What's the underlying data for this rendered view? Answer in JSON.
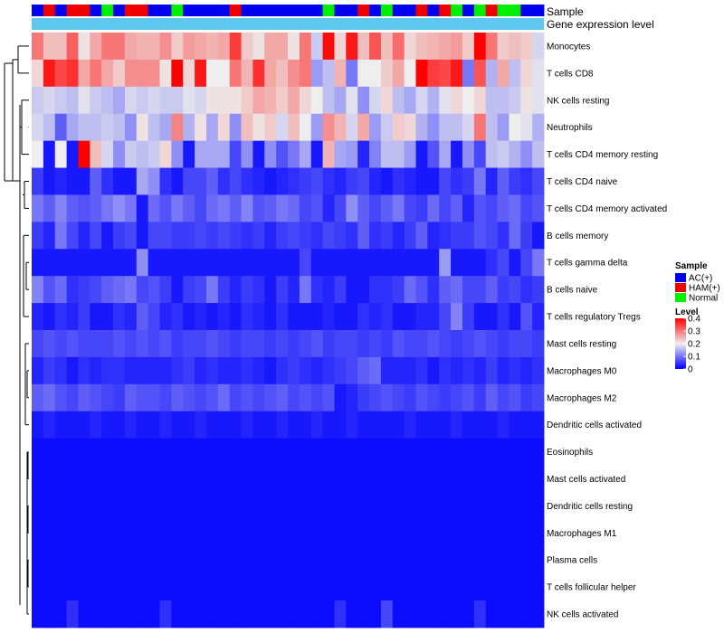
{
  "chart_data": {
    "type": "heatmap",
    "annotation_labels": {
      "sample": "Sample",
      "expression": "Gene expression level"
    },
    "sample_groups": [
      "AC",
      "HAM",
      "AC",
      "HAM",
      "HAM",
      "AC",
      "Normal",
      "AC",
      "HAM",
      "HAM",
      "AC",
      "AC",
      "Normal",
      "AC",
      "AC",
      "AC",
      "AC",
      "HAM",
      "AC",
      "AC",
      "AC",
      "AC",
      "AC",
      "AC",
      "AC",
      "Normal",
      "AC",
      "AC",
      "HAM",
      "AC",
      "Normal",
      "AC",
      "AC",
      "HAM",
      "AC",
      "HAM",
      "Normal",
      "AC",
      "Normal",
      "HAM",
      "Normal",
      "Normal",
      "AC",
      "AC"
    ],
    "rows": [
      "Monocytes",
      "T cells CD8",
      "NK cells resting",
      "Neutrophils",
      "T cells CD4 memory resting",
      "T cells CD4 naive",
      "T cells CD4 memory activated",
      "B cells memory",
      "T cells gamma delta",
      "B cells naive",
      "T cells regulatory  Tregs",
      "Mast cells resting",
      "Macrophages M0",
      "Macrophages M2",
      "Dendritic cells activated",
      "Eosinophils",
      "Mast cells activated",
      "Dendritic cells resting",
      "Macrophages M1",
      "Plasma cells",
      "T cells follicular helper",
      "NK cells activated"
    ],
    "values": [
      [
        0.3,
        0.24,
        0.24,
        0.32,
        0.21,
        0.26,
        0.3,
        0.3,
        0.26,
        0.25,
        0.25,
        0.28,
        0.23,
        0.27,
        0.26,
        0.25,
        0.26,
        0.35,
        0.23,
        0.21,
        0.26,
        0.26,
        0.21,
        0.3,
        0.17,
        0.39,
        0.22,
        0.38,
        0.24,
        0.33,
        0.24,
        0.31,
        0.22,
        0.24,
        0.25,
        0.26,
        0.27,
        0.23,
        0.4,
        0.3,
        0.23,
        0.24,
        0.23,
        0.18
      ],
      [
        0.22,
        0.38,
        0.34,
        0.36,
        0.26,
        0.3,
        0.26,
        0.23,
        0.28,
        0.28,
        0.28,
        0.21,
        0.4,
        0.22,
        0.38,
        0.2,
        0.2,
        0.3,
        0.25,
        0.36,
        0.26,
        0.24,
        0.28,
        0.3,
        0.13,
        0.16,
        0.25,
        0.1,
        0.2,
        0.2,
        0.23,
        0.26,
        0.2,
        0.4,
        0.35,
        0.34,
        0.38,
        0.1,
        0.33,
        0.15,
        0.26,
        0.16,
        0.22,
        0.19
      ],
      [
        0.17,
        0.18,
        0.17,
        0.16,
        0.19,
        0.17,
        0.16,
        0.14,
        0.18,
        0.17,
        0.18,
        0.17,
        0.17,
        0.19,
        0.18,
        0.21,
        0.21,
        0.21,
        0.23,
        0.26,
        0.25,
        0.23,
        0.26,
        0.22,
        0.2,
        0.16,
        0.14,
        0.19,
        0.12,
        0.18,
        0.22,
        0.16,
        0.14,
        0.18,
        0.15,
        0.19,
        0.22,
        0.2,
        0.22,
        0.16,
        0.16,
        0.17,
        0.21,
        0.19
      ],
      [
        0.18,
        0.16,
        0.08,
        0.14,
        0.16,
        0.16,
        0.17,
        0.16,
        0.12,
        0.21,
        0.16,
        0.14,
        0.29,
        0.15,
        0.21,
        0.14,
        0.22,
        0.12,
        0.24,
        0.21,
        0.23,
        0.18,
        0.24,
        0.2,
        0.13,
        0.28,
        0.25,
        0.18,
        0.26,
        0.13,
        0.17,
        0.23,
        0.22,
        0.15,
        0.12,
        0.16,
        0.16,
        0.18,
        0.3,
        0.16,
        0.13,
        0.2,
        0.19,
        0.15
      ],
      [
        0.2,
        0.02,
        0.2,
        0.02,
        0.4,
        0.24,
        0.18,
        0.12,
        0.17,
        0.16,
        0.17,
        0.22,
        0.12,
        0.02,
        0.14,
        0.14,
        0.14,
        0.06,
        0.12,
        0.02,
        0.12,
        0.07,
        0.1,
        0.14,
        0.02,
        0.25,
        0.14,
        0.13,
        0.03,
        0.11,
        0.16,
        0.16,
        0.13,
        0.02,
        0.07,
        0.14,
        0.02,
        0.12,
        0.06,
        0.16,
        0.17,
        0.15,
        0.12,
        0.16
      ],
      [
        0.05,
        0.02,
        0.03,
        0.02,
        0.02,
        0.08,
        0.04,
        0.02,
        0.02,
        0.14,
        0.12,
        0.04,
        0.02,
        0.06,
        0.06,
        0.08,
        0.04,
        0.06,
        0.04,
        0.03,
        0.02,
        0.03,
        0.04,
        0.05,
        0.06,
        0.04,
        0.03,
        0.05,
        0.06,
        0.03,
        0.02,
        0.04,
        0.03,
        0.02,
        0.02,
        0.06,
        0.04,
        0.05,
        0.1,
        0.03,
        0.08,
        0.05,
        0.04,
        0.06
      ],
      [
        0.1,
        0.08,
        0.11,
        0.08,
        0.07,
        0.08,
        0.1,
        0.12,
        0.1,
        0.02,
        0.09,
        0.07,
        0.1,
        0.08,
        0.06,
        0.09,
        0.1,
        0.08,
        0.11,
        0.07,
        0.08,
        0.1,
        0.09,
        0.06,
        0.07,
        0.03,
        0.06,
        0.12,
        0.08,
        0.06,
        0.08,
        0.1,
        0.06,
        0.05,
        0.09,
        0.06,
        0.08,
        0.03,
        0.07,
        0.06,
        0.08,
        0.09,
        0.06,
        0.07
      ],
      [
        0.05,
        0.03,
        0.1,
        0.06,
        0.03,
        0.06,
        0.02,
        0.05,
        0.06,
        0.02,
        0.06,
        0.06,
        0.05,
        0.05,
        0.06,
        0.05,
        0.06,
        0.05,
        0.04,
        0.05,
        0.03,
        0.05,
        0.06,
        0.05,
        0.04,
        0.06,
        0.05,
        0.04,
        0.08,
        0.04,
        0.05,
        0.03,
        0.05,
        0.08,
        0.03,
        0.04,
        0.05,
        0.05,
        0.07,
        0.06,
        0.04,
        0.09,
        0.05,
        0.02
      ],
      [
        0.02,
        0.02,
        0.02,
        0.02,
        0.02,
        0.02,
        0.02,
        0.02,
        0.02,
        0.12,
        0.02,
        0.02,
        0.02,
        0.02,
        0.02,
        0.02,
        0.02,
        0.02,
        0.02,
        0.02,
        0.02,
        0.02,
        0.02,
        0.06,
        0.02,
        0.02,
        0.02,
        0.02,
        0.02,
        0.02,
        0.02,
        0.02,
        0.02,
        0.02,
        0.02,
        0.13,
        0.02,
        0.02,
        0.02,
        0.04,
        0.06,
        0.02,
        0.06,
        0.1
      ],
      [
        0.11,
        0.07,
        0.09,
        0.04,
        0.05,
        0.06,
        0.08,
        0.09,
        0.1,
        0.06,
        0.07,
        0.05,
        0.02,
        0.05,
        0.06,
        0.1,
        0.05,
        0.03,
        0.05,
        0.04,
        0.02,
        0.05,
        0.03,
        0.1,
        0.04,
        0.03,
        0.05,
        0.02,
        0.02,
        0.04,
        0.04,
        0.05,
        0.09,
        0.07,
        0.04,
        0.08,
        0.09,
        0.06,
        0.06,
        0.08,
        0.05,
        0.06,
        0.04,
        0.05
      ],
      [
        0.03,
        0.02,
        0.04,
        0.03,
        0.05,
        0.02,
        0.02,
        0.04,
        0.03,
        0.08,
        0.06,
        0.03,
        0.04,
        0.02,
        0.03,
        0.02,
        0.03,
        0.02,
        0.04,
        0.03,
        0.02,
        0.04,
        0.02,
        0.02,
        0.02,
        0.03,
        0.02,
        0.02,
        0.04,
        0.03,
        0.04,
        0.02,
        0.02,
        0.03,
        0.03,
        0.06,
        0.11,
        0.05,
        0.02,
        0.02,
        0.04,
        0.02,
        0.07,
        0.03
      ],
      [
        0.06,
        0.07,
        0.06,
        0.07,
        0.06,
        0.06,
        0.06,
        0.07,
        0.06,
        0.07,
        0.06,
        0.07,
        0.05,
        0.06,
        0.06,
        0.07,
        0.06,
        0.05,
        0.06,
        0.06,
        0.05,
        0.06,
        0.05,
        0.06,
        0.07,
        0.05,
        0.06,
        0.06,
        0.05,
        0.06,
        0.05,
        0.07,
        0.06,
        0.06,
        0.07,
        0.06,
        0.05,
        0.06,
        0.07,
        0.06,
        0.05,
        0.06,
        0.06,
        0.05
      ],
      [
        0.03,
        0.05,
        0.04,
        0.02,
        0.04,
        0.03,
        0.04,
        0.04,
        0.03,
        0.03,
        0.03,
        0.03,
        0.04,
        0.05,
        0.03,
        0.04,
        0.03,
        0.03,
        0.04,
        0.03,
        0.02,
        0.04,
        0.05,
        0.04,
        0.03,
        0.04,
        0.05,
        0.06,
        0.08,
        0.09,
        0.03,
        0.03,
        0.03,
        0.04,
        0.02,
        0.04,
        0.03,
        0.04,
        0.03,
        0.05,
        0.03,
        0.04,
        0.03,
        0.04
      ],
      [
        0.08,
        0.09,
        0.07,
        0.06,
        0.08,
        0.07,
        0.06,
        0.05,
        0.08,
        0.07,
        0.07,
        0.06,
        0.08,
        0.07,
        0.06,
        0.07,
        0.09,
        0.06,
        0.07,
        0.06,
        0.07,
        0.08,
        0.06,
        0.07,
        0.06,
        0.07,
        0.02,
        0.03,
        0.05,
        0.06,
        0.07,
        0.06,
        0.05,
        0.07,
        0.06,
        0.05,
        0.06,
        0.07,
        0.05,
        0.08,
        0.06,
        0.07,
        0.05,
        0.06
      ],
      [
        0.02,
        0.03,
        0.02,
        0.02,
        0.02,
        0.03,
        0.02,
        0.02,
        0.03,
        0.02,
        0.02,
        0.03,
        0.02,
        0.02,
        0.03,
        0.02,
        0.02,
        0.02,
        0.03,
        0.02,
        0.02,
        0.03,
        0.02,
        0.02,
        0.03,
        0.02,
        0.02,
        0.03,
        0.02,
        0.02,
        0.02,
        0.02,
        0.03,
        0.02,
        0.02,
        0.02,
        0.03,
        0.02,
        0.02,
        0.02,
        0.03,
        0.02,
        0.02,
        0.02
      ],
      [
        0.01,
        0.01,
        0.01,
        0.01,
        0.01,
        0.01,
        0.01,
        0.01,
        0.01,
        0.01,
        0.01,
        0.01,
        0.01,
        0.01,
        0.01,
        0.01,
        0.01,
        0.01,
        0.01,
        0.01,
        0.01,
        0.01,
        0.01,
        0.01,
        0.01,
        0.01,
        0.01,
        0.01,
        0.01,
        0.01,
        0.01,
        0.01,
        0.01,
        0.01,
        0.01,
        0.01,
        0.01,
        0.01,
        0.01,
        0.01,
        0.01,
        0.01,
        0.01,
        0.01
      ],
      [
        0.01,
        0.01,
        0.01,
        0.01,
        0.01,
        0.01,
        0.01,
        0.01,
        0.01,
        0.01,
        0.01,
        0.01,
        0.01,
        0.01,
        0.01,
        0.01,
        0.01,
        0.01,
        0.01,
        0.01,
        0.01,
        0.01,
        0.01,
        0.01,
        0.01,
        0.01,
        0.01,
        0.01,
        0.01,
        0.01,
        0.01,
        0.01,
        0.01,
        0.01,
        0.01,
        0.01,
        0.01,
        0.01,
        0.01,
        0.01,
        0.01,
        0.01,
        0.01,
        0.01
      ],
      [
        0.01,
        0.01,
        0.01,
        0.01,
        0.01,
        0.01,
        0.01,
        0.01,
        0.01,
        0.01,
        0.01,
        0.01,
        0.01,
        0.01,
        0.01,
        0.01,
        0.01,
        0.01,
        0.01,
        0.01,
        0.01,
        0.01,
        0.01,
        0.01,
        0.01,
        0.01,
        0.01,
        0.01,
        0.01,
        0.01,
        0.01,
        0.01,
        0.01,
        0.01,
        0.01,
        0.01,
        0.01,
        0.01,
        0.01,
        0.01,
        0.01,
        0.01,
        0.01,
        0.01
      ],
      [
        0.01,
        0.01,
        0.01,
        0.01,
        0.01,
        0.01,
        0.01,
        0.01,
        0.01,
        0.01,
        0.01,
        0.01,
        0.01,
        0.01,
        0.01,
        0.01,
        0.01,
        0.01,
        0.01,
        0.01,
        0.01,
        0.01,
        0.01,
        0.01,
        0.01,
        0.01,
        0.01,
        0.01,
        0.01,
        0.01,
        0.01,
        0.01,
        0.01,
        0.01,
        0.01,
        0.01,
        0.01,
        0.01,
        0.01,
        0.01,
        0.01,
        0.01,
        0.01,
        0.01
      ],
      [
        0.01,
        0.01,
        0.01,
        0.01,
        0.01,
        0.01,
        0.01,
        0.01,
        0.01,
        0.01,
        0.01,
        0.01,
        0.01,
        0.01,
        0.01,
        0.01,
        0.01,
        0.01,
        0.01,
        0.01,
        0.01,
        0.01,
        0.01,
        0.01,
        0.01,
        0.01,
        0.01,
        0.01,
        0.01,
        0.01,
        0.01,
        0.01,
        0.01,
        0.01,
        0.01,
        0.01,
        0.01,
        0.01,
        0.01,
        0.01,
        0.01,
        0.01,
        0.01,
        0.01
      ],
      [
        0.01,
        0.01,
        0.01,
        0.01,
        0.01,
        0.01,
        0.01,
        0.01,
        0.01,
        0.01,
        0.01,
        0.01,
        0.01,
        0.01,
        0.01,
        0.01,
        0.01,
        0.01,
        0.01,
        0.01,
        0.01,
        0.01,
        0.01,
        0.01,
        0.01,
        0.01,
        0.01,
        0.01,
        0.01,
        0.01,
        0.01,
        0.01,
        0.01,
        0.01,
        0.01,
        0.01,
        0.01,
        0.01,
        0.01,
        0.01,
        0.01,
        0.01,
        0.01,
        0.01
      ],
      [
        0.01,
        0.01,
        0.01,
        0.04,
        0.01,
        0.01,
        0.01,
        0.01,
        0.01,
        0.01,
        0.01,
        0.04,
        0.01,
        0.01,
        0.01,
        0.01,
        0.01,
        0.01,
        0.01,
        0.01,
        0.01,
        0.01,
        0.01,
        0.01,
        0.01,
        0.01,
        0.04,
        0.01,
        0.01,
        0.01,
        0.06,
        0.01,
        0.01,
        0.01,
        0.01,
        0.01,
        0.01,
        0.01,
        0.04,
        0.01,
        0.01,
        0.01,
        0.01,
        0.01
      ]
    ],
    "color_scale": {
      "min": 0,
      "max": 0.4,
      "low_color": "#0000ff",
      "mid_color": "#eeeeee",
      "high_color": "#ff0000"
    },
    "expression_bar_color": "#5fc8f0",
    "legend": {
      "placement": "right",
      "sample_title": "Sample",
      "groups": [
        {
          "key": "AC",
          "label": "AC(+)",
          "color": "#0000ee"
        },
        {
          "key": "HAM",
          "label": "HAM(+)",
          "color": "#ee0000"
        },
        {
          "key": "Normal",
          "label": "Normal",
          "color": "#00ee00"
        }
      ],
      "level_title": "Level",
      "level_ticks": [
        0.4,
        0.3,
        0.2,
        0.1,
        0
      ],
      "level_tick_labels": [
        "0.4",
        "0.3",
        "0.2",
        "0.1",
        "0"
      ]
    }
  }
}
